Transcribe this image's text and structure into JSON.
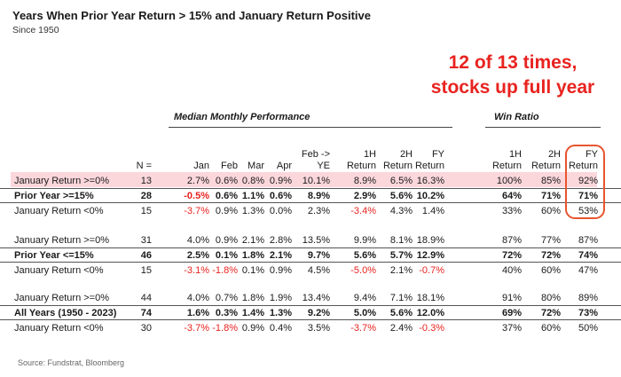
{
  "title": "Years When Prior Year Return > 15% and January Return Positive",
  "subtitle": "Since 1950",
  "callout": {
    "line1": "12 of 13 times,",
    "line2": "stocks up full year"
  },
  "sections": {
    "median": "Median Monthly Performance",
    "win": "Win Ratio"
  },
  "headers": {
    "n": "N =",
    "jan": "Jan",
    "feb": "Feb",
    "mar": "Mar",
    "apr": "Apr",
    "febye_1": "Feb ->",
    "febye_2": "YE",
    "h1_1": "1H",
    "h1_2": "Return",
    "h2_1": "2H",
    "h2_2": "Return",
    "fy_1": "FY",
    "fy_2": "Return",
    "w1h_1": "1H",
    "w1h_2": "Return",
    "w2h_1": "2H",
    "w2h_2": "Return",
    "wfy_1": "FY",
    "wfy_2": "Return"
  },
  "rows": [
    {
      "label": "January Return >=0%",
      "n": "13",
      "jan": "2.7%",
      "feb": "0.6%",
      "mar": "0.8%",
      "apr": "0.9%",
      "febye": "10.1%",
      "h1": "8.9%",
      "h2": "6.5%",
      "fy": "16.3%",
      "w1h": "100%",
      "w2h": "85%",
      "wfy": "92%"
    },
    {
      "label": "Prior Year >=15%",
      "n": "28",
      "jan": "-0.5%",
      "feb": "0.6%",
      "mar": "1.1%",
      "apr": "0.6%",
      "febye": "8.9%",
      "h1": "2.9%",
      "h2": "5.6%",
      "fy": "10.2%",
      "w1h": "64%",
      "w2h": "71%",
      "wfy": "71%"
    },
    {
      "label": "January Return <0%",
      "n": "15",
      "jan": "-3.7%",
      "feb": "0.9%",
      "mar": "1.3%",
      "apr": "0.0%",
      "febye": "2.3%",
      "h1": "-3.4%",
      "h2": "4.3%",
      "fy": "1.4%",
      "w1h": "33%",
      "w2h": "60%",
      "wfy": "53%"
    },
    {
      "label": "January Return >=0%",
      "n": "31",
      "jan": "4.0%",
      "feb": "0.9%",
      "mar": "2.1%",
      "apr": "2.8%",
      "febye": "13.5%",
      "h1": "9.9%",
      "h2": "8.1%",
      "fy": "18.9%",
      "w1h": "87%",
      "w2h": "77%",
      "wfy": "87%"
    },
    {
      "label": "Prior Year <=15%",
      "n": "46",
      "jan": "2.5%",
      "feb": "0.1%",
      "mar": "1.8%",
      "apr": "2.1%",
      "febye": "9.7%",
      "h1": "5.6%",
      "h2": "5.7%",
      "fy": "12.9%",
      "w1h": "72%",
      "w2h": "72%",
      "wfy": "74%"
    },
    {
      "label": "January Return <0%",
      "n": "15",
      "jan": "-3.1%",
      "feb": "-1.8%",
      "mar": "0.1%",
      "apr": "0.9%",
      "febye": "4.5%",
      "h1": "-5.0%",
      "h2": "2.1%",
      "fy": "-0.7%",
      "w1h": "40%",
      "w2h": "60%",
      "wfy": "47%"
    },
    {
      "label": "January Return >=0%",
      "n": "44",
      "jan": "4.0%",
      "feb": "0.7%",
      "mar": "1.8%",
      "apr": "1.9%",
      "febye": "13.4%",
      "h1": "9.4%",
      "h2": "7.1%",
      "fy": "18.1%",
      "w1h": "91%",
      "w2h": "80%",
      "wfy": "89%"
    },
    {
      "label": "All Years (1950 - 2023)",
      "n": "74",
      "jan": "1.6%",
      "feb": "0.3%",
      "mar": "1.4%",
      "apr": "1.3%",
      "febye": "9.2%",
      "h1": "5.0%",
      "h2": "5.6%",
      "fy": "12.0%",
      "w1h": "69%",
      "w2h": "72%",
      "wfy": "73%"
    },
    {
      "label": "January Return <0%",
      "n": "30",
      "jan": "-3.7%",
      "feb": "-1.8%",
      "mar": "0.9%",
      "apr": "0.4%",
      "febye": "3.5%",
      "h1": "-3.7%",
      "h2": "2.4%",
      "fy": "-0.3%",
      "w1h": "37%",
      "w2h": "60%",
      "wfy": "50%"
    }
  ],
  "source": "Source: Fundstrat, Bloomberg",
  "colors": {
    "negative": "#e8231f",
    "highlight_row": "#fbd7dc",
    "callout": "#e8231f",
    "fy_box": "#e8552f"
  }
}
